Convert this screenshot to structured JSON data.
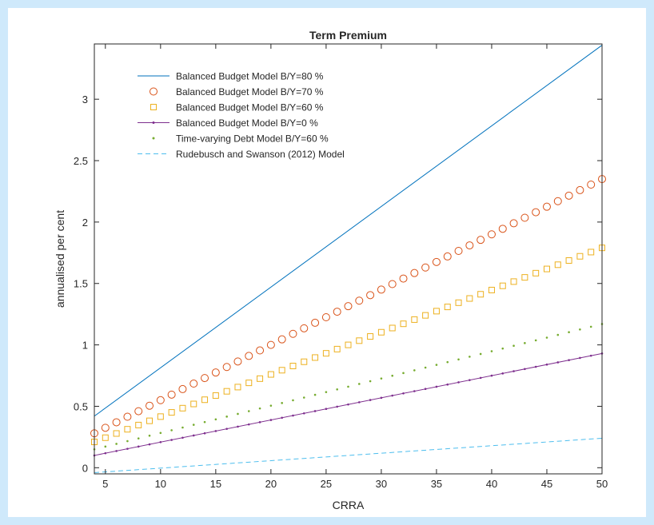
{
  "chart_data": {
    "type": "line",
    "title": "Term Premium",
    "xlabel": "CRRA",
    "ylabel": "annualised per cent",
    "xlim": [
      4,
      50
    ],
    "ylim": [
      -0.05,
      3.45
    ],
    "xticks": [
      5,
      10,
      15,
      20,
      25,
      30,
      35,
      40,
      45,
      50
    ],
    "yticks": [
      0,
      0.5,
      1,
      1.5,
      2,
      2.5,
      3
    ],
    "legend_position": "top-left",
    "grid": false,
    "x_range": [
      4,
      50
    ],
    "series": [
      {
        "name": "Balanced Budget Model B/Y=80 %",
        "color": "#0072bd",
        "style": "solid-line",
        "y_start": 0.42,
        "y_end": 3.44
      },
      {
        "name": "Balanced Budget Model B/Y=70 %",
        "color": "#d95319",
        "style": "circle-markers",
        "y_start": 0.28,
        "y_end": 2.35
      },
      {
        "name": "Balanced Budget Model B/Y=60 %",
        "color": "#edb120",
        "style": "square-markers",
        "y_start": 0.21,
        "y_end": 1.79
      },
      {
        "name": "Balanced Budget Model B/Y=0 %",
        "color": "#7e2f8e",
        "style": "line-with-dots",
        "y_start": 0.1,
        "y_end": 0.93
      },
      {
        "name": "Time-varying Debt Model B/Y=60 %",
        "color": "#77ac30",
        "style": "dot-markers",
        "y_start": 0.15,
        "y_end": 1.17
      },
      {
        "name": "Rudebusch and Swanson (2012) Model",
        "color": "#4dbeee",
        "style": "dashed-line",
        "y_start": -0.04,
        "y_end": 0.24
      }
    ]
  }
}
